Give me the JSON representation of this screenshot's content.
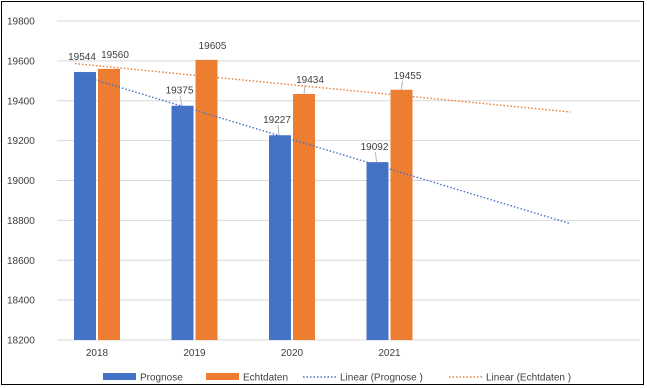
{
  "chart_data": {
    "type": "bar",
    "title": "",
    "xlabel": "",
    "ylabel": "",
    "categories": [
      "2018",
      "2019",
      "2020",
      "2021"
    ],
    "ylim": [
      18200,
      19800
    ],
    "yticks": [
      "18200",
      "18400",
      "18600",
      "18800",
      "19000",
      "19200",
      "19400",
      "19600",
      "19800"
    ],
    "grid": true,
    "legend_position": "bottom",
    "series": [
      {
        "name": "Prognose",
        "values": [
          19544,
          19375,
          19227,
          19092
        ],
        "color": "#4472C4"
      },
      {
        "name": "Echtdaten",
        "values": [
          19560,
          19605,
          19434,
          19455
        ],
        "color": "#ED7D31"
      }
    ],
    "trendlines": [
      {
        "name": "Linear (Prognose )",
        "series": "Prognose",
        "type": "linear",
        "style": "dotted",
        "color": "#4472C4"
      },
      {
        "name": "Linear (Echtdaten )",
        "series": "Echtdaten",
        "type": "linear",
        "style": "dotted",
        "color": "#ED7D31"
      }
    ]
  }
}
